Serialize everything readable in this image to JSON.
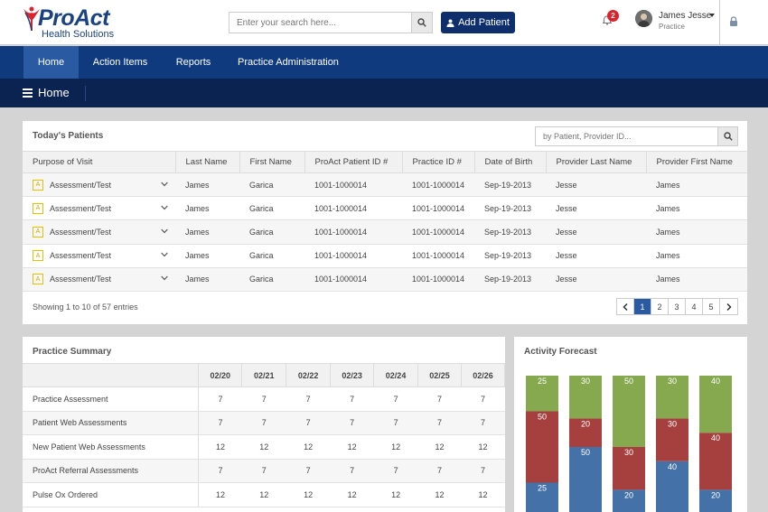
{
  "header": {
    "logo_main": "ProAct",
    "logo_sub": "Health Solutions",
    "search_placeholder": "Enter your search here...",
    "add_patient_label": "Add Patient",
    "notification_count": "2",
    "user_name": "James Jesse",
    "user_role": "Practice",
    "icons": [
      "search-icon",
      "user-plus-icon",
      "bell-icon",
      "lock-icon",
      "chevron-down-icon"
    ]
  },
  "nav": {
    "items": [
      {
        "label": "Home"
      },
      {
        "label": "Action Items"
      },
      {
        "label": "Reports"
      },
      {
        "label": "Practice Administration"
      }
    ],
    "page_title": "Home"
  },
  "todays_patients": {
    "title": "Today's Patients",
    "search_placeholder": "by Patient, Provider ID...",
    "columns": [
      "Purpose of Visit",
      "Last Name",
      "First Name",
      "ProAct Patient ID #",
      "Practice ID #",
      "Date of Birth",
      "Provider Last Name",
      "Provider First Name"
    ],
    "rows": [
      {
        "icon_letter": "A",
        "purpose": "Assessment/Test",
        "last": "James",
        "first": "Garica",
        "proact_id": "1001-1000014",
        "practice_id": "1001-1000014",
        "dob": "Sep-19-2013",
        "prov_last": "Jesse",
        "prov_first": "James"
      },
      {
        "icon_letter": "A",
        "purpose": "Assessment/Test",
        "last": "James",
        "first": "Garica",
        "proact_id": "1001-1000014",
        "practice_id": "1001-1000014",
        "dob": "Sep-19-2013",
        "prov_last": "Jesse",
        "prov_first": "James"
      },
      {
        "icon_letter": "A",
        "purpose": "Assessment/Test",
        "last": "James",
        "first": "Garica",
        "proact_id": "1001-1000014",
        "practice_id": "1001-1000014",
        "dob": "Sep-19-2013",
        "prov_last": "Jesse",
        "prov_first": "James"
      },
      {
        "icon_letter": "A",
        "purpose": "Assessment/Test",
        "last": "James",
        "first": "Garica",
        "proact_id": "1001-1000014",
        "practice_id": "1001-1000014",
        "dob": "Sep-19-2013",
        "prov_last": "Jesse",
        "prov_first": "James"
      },
      {
        "icon_letter": "A",
        "purpose": "Assessment/Test",
        "last": "James",
        "first": "Garica",
        "proact_id": "1001-1000014",
        "practice_id": "1001-1000014",
        "dob": "Sep-19-2013",
        "prov_last": "Jesse",
        "prov_first": "James"
      }
    ],
    "showing_text": "Showing 1 to 10 of 57 entries",
    "pages": [
      "1",
      "2",
      "3",
      "4",
      "5"
    ],
    "active_page": "1"
  },
  "practice_summary": {
    "title": "Practice Summary",
    "dates": [
      "02/20",
      "02/21",
      "02/22",
      "02/23",
      "02/24",
      "02/25",
      "02/26"
    ],
    "rows": [
      {
        "label": "Practice Assessment",
        "values": [
          "7",
          "7",
          "7",
          "7",
          "7",
          "7",
          "7"
        ]
      },
      {
        "label": "Patient Web Assessments",
        "values": [
          "7",
          "7",
          "7",
          "7",
          "7",
          "7",
          "7"
        ]
      },
      {
        "label": "New Patient Web Assessments",
        "values": [
          "12",
          "12",
          "12",
          "12",
          "12",
          "12",
          "12"
        ]
      },
      {
        "label": "ProAct Referral Assessments",
        "values": [
          "7",
          "7",
          "7",
          "7",
          "7",
          "7",
          "7"
        ]
      },
      {
        "label": "Pulse Ox Ordered",
        "values": [
          "12",
          "12",
          "12",
          "12",
          "12",
          "12",
          "12"
        ]
      }
    ]
  },
  "activity_forecast": {
    "title": "Activity Forecast",
    "chart_data": {
      "type": "bar",
      "stacked": true,
      "colors": {
        "green": "#86a84f",
        "red": "#a6403f",
        "blue": "#4472a8"
      },
      "bars": [
        {
          "green": 25,
          "red": 50,
          "blue": 25
        },
        {
          "green": 30,
          "red": 20,
          "blue": 50
        },
        {
          "green": 50,
          "red": 30,
          "blue": 20
        },
        {
          "green": 30,
          "red": 30,
          "blue": 40
        },
        {
          "green": 40,
          "red": 40,
          "blue": 20
        }
      ]
    }
  }
}
